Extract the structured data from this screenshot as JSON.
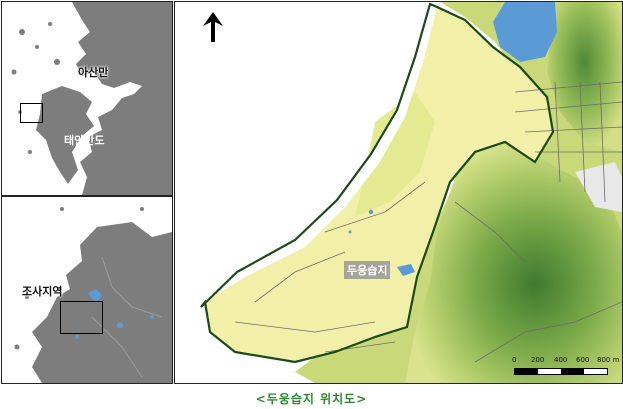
{
  "insets": {
    "top": {
      "label_asan": "아산만",
      "label_taean": "태안반도"
    },
    "bottom": {
      "label_study": "조사지역"
    }
  },
  "main_map": {
    "wetland_label": "두웅습지",
    "north_arrow": "north-arrow-icon",
    "scale": {
      "ticks": [
        "0",
        "200",
        "400",
        "600",
        "800 m"
      ]
    }
  },
  "caption": "<두웅습지 위치도>",
  "colors": {
    "land_gray": "#7d7d7d",
    "water": "#5a9bd6",
    "boundary": "#1a4a1a",
    "terrain_green": "#8fb85a",
    "terrain_yellow": "#f2f0a8",
    "caption": "#2b8a2b"
  }
}
